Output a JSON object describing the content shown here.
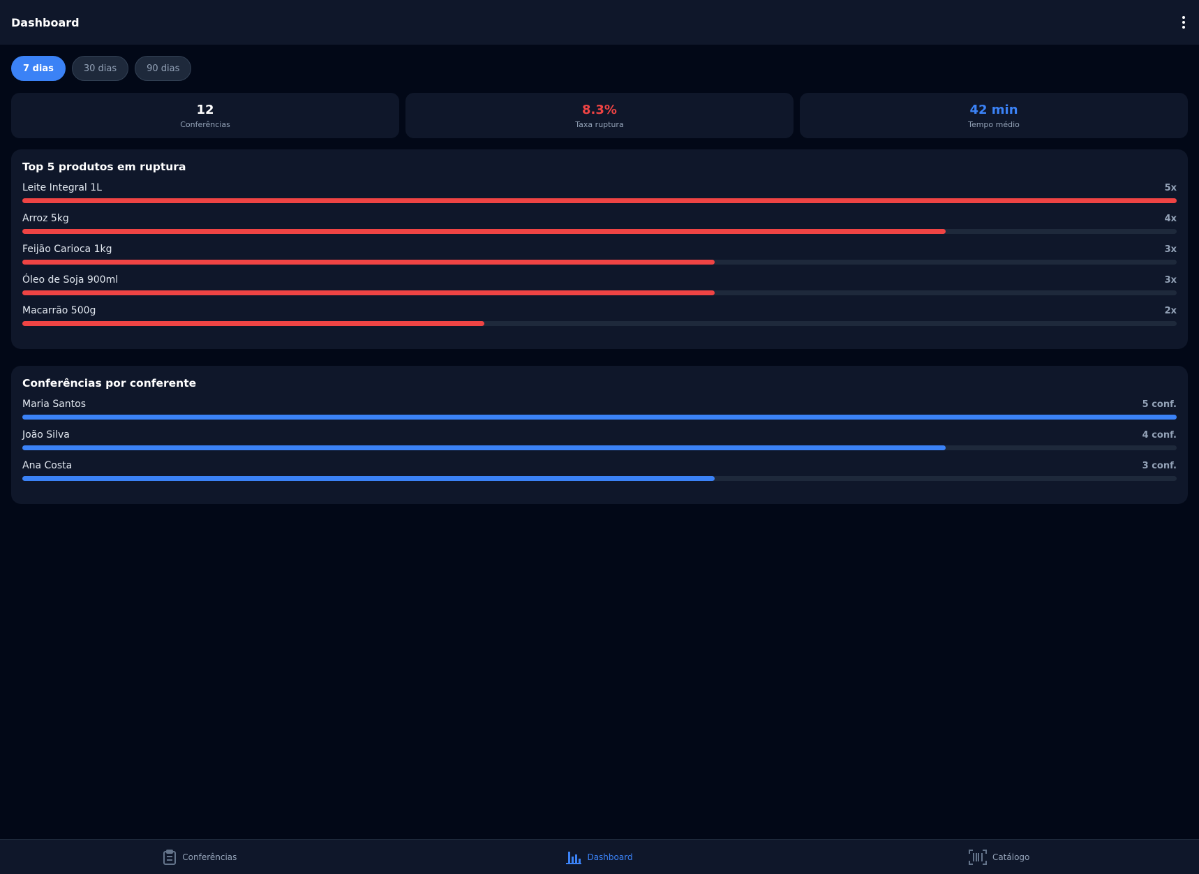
{
  "header": {
    "title": "Dashboard"
  },
  "periods": [
    "7 dias",
    "30 dias",
    "90 dias"
  ],
  "stats": [
    {
      "value": "12",
      "label": "Conferências",
      "color": "#ffffff"
    },
    {
      "value": "8.3%",
      "label": "Taxa ruptura",
      "color": "#ef4444"
    },
    {
      "value": "42 min",
      "label": "Tempo médio",
      "color": "#3b82f6"
    }
  ],
  "lists": [
    {
      "title": "Top 5 produtos em ruptura",
      "color": "#ef4444",
      "names": [
        "Leite Integral 1L",
        "Arroz 5kg",
        "Feijão Carioca 1kg",
        "Óleo de Soja 900ml",
        "Macarrão 500g"
      ],
      "values": [
        5,
        4,
        3,
        3,
        2
      ],
      "value_labels": [
        "5x",
        "4x",
        "3x",
        "3x",
        "2x"
      ]
    },
    {
      "title": "Conferências por conferente",
      "color": "#3b82f6",
      "names": [
        "Maria Santos",
        "João Silva",
        "Ana Costa"
      ],
      "values": [
        5,
        4,
        3
      ],
      "value_labels": [
        "5 conf.",
        "4 conf.",
        "3 conf."
      ]
    }
  ],
  "nav": [
    "Conferências",
    "Dashboard",
    "Catálogo"
  ]
}
